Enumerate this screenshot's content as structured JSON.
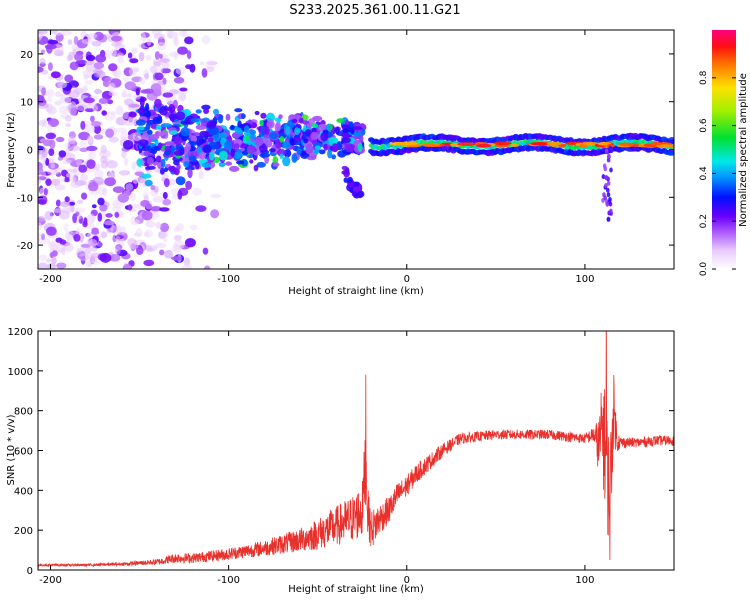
{
  "title": "S233.2025.361.00.11.G21",
  "chart_data": [
    {
      "type": "heatmap",
      "title": "S233.2025.361.00.11.G21",
      "xlabel": "Height of straight line (km)",
      "ylabel": "Frequency (Hz)",
      "xlim": [
        -207,
        150
      ],
      "ylim": [
        -25,
        25
      ],
      "xticks": [
        -200,
        -100,
        0,
        100
      ],
      "yticks": [
        -20,
        -10,
        0,
        10,
        20
      ],
      "colorbar": {
        "label": "Normalized spectral amplitude",
        "range": [
          0,
          1
        ],
        "ticks": [
          0.0,
          0.2,
          0.4,
          0.6,
          0.8
        ]
      },
      "features": [
        {
          "name": "noise-field",
          "x": [
            -207,
            -150
          ],
          "y": [
            -25,
            25
          ],
          "amplitude": [
            0.05,
            0.25
          ]
        },
        {
          "name": "descending-band",
          "x": [
            -150,
            -25
          ],
          "y": [
            [
              8,
              3
            ],
            [
              -5,
              2
            ]
          ],
          "amplitude": [
            0.15,
            0.45
          ]
        },
        {
          "name": "dropout-tail",
          "x": [
            -35,
            -25
          ],
          "y": [
            -10,
            -5
          ],
          "amplitude": [
            0.2,
            0.3
          ]
        },
        {
          "name": "flat-track",
          "x": [
            -20,
            150
          ],
          "y": [
            0,
            2
          ],
          "amplitude": [
            0.4,
            0.95
          ]
        },
        {
          "name": "spike-streak",
          "x": [
            110,
            115
          ],
          "y": [
            -15,
            2
          ],
          "amplitude": [
            0.15,
            0.3
          ]
        }
      ]
    },
    {
      "type": "line",
      "xlabel": "Height of straight line (km)",
      "ylabel": "SNR (10 * v/v)",
      "xlim": [
        -207,
        150
      ],
      "ylim": [
        0,
        1200
      ],
      "xticks": [
        -200,
        -100,
        0,
        100
      ],
      "yticks": [
        0,
        200,
        400,
        600,
        800,
        1000,
        1200
      ],
      "color": "#e8312c",
      "series": [
        {
          "name": "SNR",
          "x": [
            -207,
            -180,
            -160,
            -140,
            -130,
            -120,
            -100,
            -80,
            -60,
            -50,
            -40,
            -30,
            -25,
            -23,
            -22,
            -20,
            -15,
            -10,
            -5,
            0,
            5,
            10,
            15,
            20,
            25,
            30,
            40,
            50,
            60,
            70,
            80,
            90,
            100,
            105,
            108,
            110,
            112,
            114,
            116,
            118,
            120,
            125,
            130,
            140,
            150
          ],
          "y": [
            25,
            25,
            30,
            40,
            60,
            60,
            80,
            110,
            150,
            180,
            220,
            260,
            300,
            560,
            300,
            200,
            260,
            300,
            380,
            420,
            480,
            520,
            560,
            600,
            630,
            660,
            670,
            680,
            680,
            680,
            680,
            670,
            660,
            680,
            620,
            720,
            550,
            350,
            820,
            650,
            640,
            640,
            640,
            650,
            650
          ],
          "noise_amplitude": [
            6,
            6,
            8,
            15,
            25,
            25,
            30,
            40,
            60,
            80,
            100,
            120,
            140,
            220,
            120,
            100,
            80,
            70,
            60,
            55,
            50,
            45,
            40,
            35,
            30,
            28,
            25,
            25,
            25,
            25,
            25,
            25,
            25,
            40,
            150,
            280,
            300,
            300,
            200,
            60,
            30,
            25,
            25,
            25,
            25
          ]
        }
      ],
      "peaks": [
        {
          "x": -23,
          "y": 980
        },
        {
          "x": 112,
          "y": 1200
        },
        {
          "x": 114,
          "y": 50
        }
      ]
    }
  ]
}
